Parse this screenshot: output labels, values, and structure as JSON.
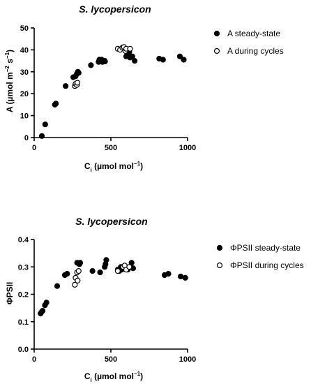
{
  "chart_data": [
    {
      "type": "scatter",
      "title": "S. lycopersicon",
      "xlabel_main": "C",
      "xlabel_sub": "i",
      "xlabel_unit_pre": " (µmol mol",
      "xlabel_unit_sup": "−1",
      "xlabel_unit_post": ")",
      "ylabel_pre": "A (µmol m",
      "ylabel_sup1": "−2",
      "ylabel_mid": " s",
      "ylabel_sup2": "−1",
      "ylabel_post": ")",
      "xlim": [
        0,
        1000
      ],
      "ylim": [
        0,
        50
      ],
      "xticks": [
        "0",
        "500",
        "1000"
      ],
      "yticks": [
        "0",
        "10",
        "20",
        "30",
        "40",
        "50"
      ],
      "legend_position": "right",
      "series": [
        {
          "name": "A steady-state",
          "marker": "filled-circle",
          "points": [
            [
              50,
              0.7
            ],
            [
              72,
              6
            ],
            [
              135,
              15
            ],
            [
              142,
              15.5
            ],
            [
              205,
              23.5
            ],
            [
              255,
              27.5
            ],
            [
              270,
              28
            ],
            [
              278,
              29
            ],
            [
              285,
              30
            ],
            [
              290,
              29.5
            ],
            [
              370,
              33
            ],
            [
              420,
              34.5
            ],
            [
              425,
              35.5
            ],
            [
              440,
              35.5
            ],
            [
              445,
              34.5
            ],
            [
              460,
              35
            ],
            [
              462,
              34.7
            ],
            [
              600,
              37
            ],
            [
              605,
              37.5
            ],
            [
              620,
              39
            ],
            [
              625,
              36.5
            ],
            [
              640,
              37
            ],
            [
              655,
              35
            ],
            [
              815,
              36
            ],
            [
              840,
              35.5
            ],
            [
              950,
              37
            ],
            [
              975,
              35.5
            ]
          ]
        },
        {
          "name": "A during cycles",
          "marker": "open-circle",
          "points": [
            [
              265,
              23.5
            ],
            [
              270,
              24.5
            ],
            [
              278,
              24
            ],
            [
              282,
              25
            ],
            [
              545,
              40.5
            ],
            [
              560,
              40
            ],
            [
              575,
              41
            ],
            [
              585,
              41.3
            ],
            [
              595,
              39.5
            ],
            [
              600,
              40.5
            ],
            [
              625,
              40.5
            ]
          ]
        }
      ]
    },
    {
      "type": "scatter",
      "title": "S. lycopersicon",
      "xlabel_main": "C",
      "xlabel_sub": "i",
      "xlabel_unit_pre": " (µmol mol",
      "xlabel_unit_sup": "−1",
      "xlabel_unit_post": ")",
      "ylabel": "ΦPSII",
      "xlim": [
        0,
        1000
      ],
      "ylim": [
        0,
        0.4
      ],
      "xticks": [
        "0",
        "500",
        "1000"
      ],
      "yticks": [
        "0.0",
        "0.1",
        "0.2",
        "0.3",
        "0.4"
      ],
      "legend_position": "right",
      "series": [
        {
          "name": "ΦPSII steady-state",
          "marker": "filled-circle",
          "points": [
            [
              42,
              0.13
            ],
            [
              48,
              0.135
            ],
            [
              55,
              0.14
            ],
            [
              70,
              0.16
            ],
            [
              80,
              0.17
            ],
            [
              150,
              0.23
            ],
            [
              200,
              0.27
            ],
            [
              215,
              0.275
            ],
            [
              280,
              0.315
            ],
            [
              295,
              0.31
            ],
            [
              300,
              0.315
            ],
            [
              380,
              0.285
            ],
            [
              430,
              0.28
            ],
            [
              460,
              0.3
            ],
            [
              465,
              0.31
            ],
            [
              470,
              0.325
            ],
            [
              545,
              0.29
            ],
            [
              555,
              0.285
            ],
            [
              565,
              0.3
            ],
            [
              570,
              0.29
            ],
            [
              610,
              0.29
            ],
            [
              625,
              0.3
            ],
            [
              635,
              0.315
            ],
            [
              645,
              0.295
            ],
            [
              850,
              0.27
            ],
            [
              875,
              0.275
            ],
            [
              955,
              0.265
            ],
            [
              985,
              0.26
            ]
          ]
        },
        {
          "name": "ΦPSII during cycles",
          "marker": "open-circle",
          "points": [
            [
              265,
              0.235
            ],
            [
              270,
              0.26
            ],
            [
              280,
              0.28
            ],
            [
              283,
              0.25
            ],
            [
              290,
              0.285
            ],
            [
              545,
              0.285
            ],
            [
              580,
              0.3
            ],
            [
              590,
              0.305
            ],
            [
              600,
              0.29
            ],
            [
              620,
              0.3
            ]
          ]
        }
      ]
    }
  ]
}
